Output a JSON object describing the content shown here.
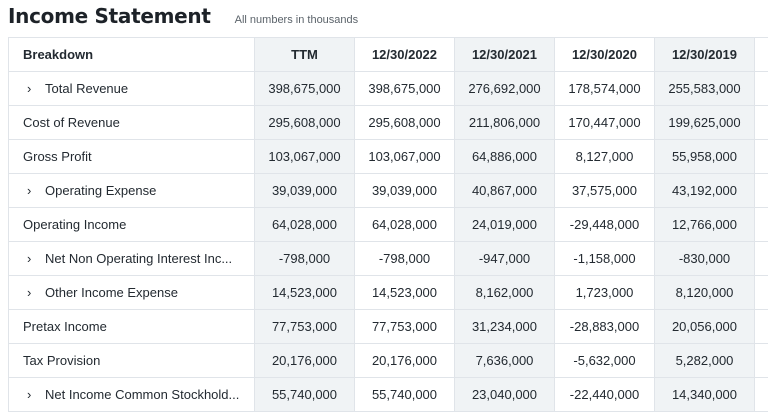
{
  "header": {
    "title": "Income Statement",
    "subtitle": "All numbers in thousands"
  },
  "table": {
    "columns": [
      "Breakdown",
      "TTM",
      "12/30/2022",
      "12/30/2021",
      "12/30/2020",
      "12/30/2019"
    ],
    "rows": [
      {
        "label": "Total Revenue",
        "expandable": true,
        "values": [
          "398,675,000",
          "398,675,000",
          "276,692,000",
          "178,574,000",
          "255,583,000"
        ]
      },
      {
        "label": "Cost of Revenue",
        "expandable": false,
        "values": [
          "295,608,000",
          "295,608,000",
          "211,806,000",
          "170,447,000",
          "199,625,000"
        ]
      },
      {
        "label": "Gross Profit",
        "expandable": false,
        "values": [
          "103,067,000",
          "103,067,000",
          "64,886,000",
          "8,127,000",
          "55,958,000"
        ]
      },
      {
        "label": "Operating Expense",
        "expandable": true,
        "values": [
          "39,039,000",
          "39,039,000",
          "40,867,000",
          "37,575,000",
          "43,192,000"
        ]
      },
      {
        "label": "Operating Income",
        "expandable": false,
        "values": [
          "64,028,000",
          "64,028,000",
          "24,019,000",
          "-29,448,000",
          "12,766,000"
        ]
      },
      {
        "label": "Net Non Operating Interest Inc...",
        "expandable": true,
        "values": [
          "-798,000",
          "-798,000",
          "-947,000",
          "-1,158,000",
          "-830,000"
        ]
      },
      {
        "label": "Other Income Expense",
        "expandable": true,
        "values": [
          "14,523,000",
          "14,523,000",
          "8,162,000",
          "1,723,000",
          "8,120,000"
        ]
      },
      {
        "label": "Pretax Income",
        "expandable": false,
        "values": [
          "77,753,000",
          "77,753,000",
          "31,234,000",
          "-28,883,000",
          "20,056,000"
        ]
      },
      {
        "label": "Tax Provision",
        "expandable": false,
        "values": [
          "20,176,000",
          "20,176,000",
          "7,636,000",
          "-5,632,000",
          "5,282,000"
        ]
      },
      {
        "label": "Net Income Common Stockhold...",
        "expandable": true,
        "values": [
          "55,740,000",
          "55,740,000",
          "23,040,000",
          "-22,440,000",
          "14,340,000"
        ]
      }
    ]
  },
  "icons": {
    "expand": "chevron-right-icon"
  },
  "colors": {
    "alt_column_bg": "#f0f3f5",
    "border": "#e0e4e9",
    "text": "#232a31"
  }
}
